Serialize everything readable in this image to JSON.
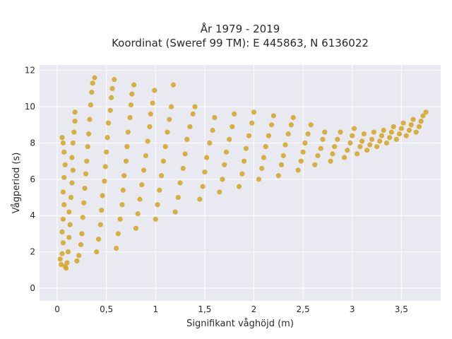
{
  "chart_data": {
    "type": "scatter",
    "title_lines": [
      "År 1979 - 2019",
      "Koordinat (Sweref 99 TM): E 445863, N 6136022"
    ],
    "xlabel": "Signifikant våghöjd (m)",
    "ylabel": "Vågperiod (s)",
    "xlim": [
      -0.18,
      3.9
    ],
    "ylim": [
      -0.7,
      12.3
    ],
    "x_ticks": [
      0,
      0.5,
      1,
      1.5,
      2,
      2.5,
      3,
      3.5
    ],
    "x_tick_labels": [
      "0",
      "0,5",
      "1",
      "1,5",
      "2",
      "2,5",
      "3",
      "3,5"
    ],
    "y_ticks": [
      0,
      2,
      4,
      6,
      8,
      10,
      12
    ],
    "y_tick_labels": [
      "0",
      "2",
      "4",
      "6",
      "8",
      "10",
      "12"
    ],
    "grid": true,
    "colors": {
      "marker": "#D4A520",
      "plot_background": "#E9E9F1",
      "grid": "#ffffff"
    },
    "series": [
      {
        "marker": "circle",
        "points": [
          [
            0.03,
            1.6
          ],
          [
            0.04,
            1.3
          ],
          [
            0.05,
            1.9
          ],
          [
            0.06,
            2.5
          ],
          [
            0.05,
            3.1
          ],
          [
            0.06,
            3.8
          ],
          [
            0.07,
            4.6
          ],
          [
            0.06,
            5.3
          ],
          [
            0.07,
            6.1
          ],
          [
            0.08,
            6.8
          ],
          [
            0.07,
            7.5
          ],
          [
            0.06,
            8.0
          ],
          [
            0.05,
            8.3
          ],
          [
            0.08,
            1.2
          ],
          [
            0.09,
            1.1
          ],
          [
            0.1,
            1.4
          ],
          [
            0.11,
            2.0
          ],
          [
            0.12,
            2.8
          ],
          [
            0.13,
            3.5
          ],
          [
            0.12,
            4.2
          ],
          [
            0.14,
            5.0
          ],
          [
            0.15,
            5.8
          ],
          [
            0.16,
            6.5
          ],
          [
            0.15,
            7.2
          ],
          [
            0.16,
            8.0
          ],
          [
            0.17,
            8.6
          ],
          [
            0.18,
            9.2
          ],
          [
            0.18,
            9.7
          ],
          [
            0.2,
            1.5
          ],
          [
            0.22,
            1.8
          ],
          [
            0.24,
            2.4
          ],
          [
            0.25,
            3.0
          ],
          [
            0.26,
            3.9
          ],
          [
            0.27,
            4.7
          ],
          [
            0.28,
            5.5
          ],
          [
            0.29,
            6.3
          ],
          [
            0.3,
            7.0
          ],
          [
            0.31,
            7.8
          ],
          [
            0.32,
            8.5
          ],
          [
            0.33,
            9.3
          ],
          [
            0.34,
            10.1
          ],
          [
            0.35,
            10.8
          ],
          [
            0.36,
            11.3
          ],
          [
            0.38,
            11.6
          ],
          [
            0.4,
            2.0
          ],
          [
            0.42,
            2.7
          ],
          [
            0.44,
            3.5
          ],
          [
            0.45,
            4.3
          ],
          [
            0.46,
            5.1
          ],
          [
            0.48,
            5.9
          ],
          [
            0.49,
            6.7
          ],
          [
            0.5,
            7.5
          ],
          [
            0.51,
            8.3
          ],
          [
            0.52,
            9.1
          ],
          [
            0.54,
            9.8
          ],
          [
            0.55,
            10.5
          ],
          [
            0.56,
            11.0
          ],
          [
            0.58,
            11.5
          ],
          [
            0.6,
            2.2
          ],
          [
            0.62,
            3.0
          ],
          [
            0.64,
            3.8
          ],
          [
            0.66,
            4.6
          ],
          [
            0.67,
            5.4
          ],
          [
            0.68,
            6.2
          ],
          [
            0.7,
            7.0
          ],
          [
            0.71,
            7.8
          ],
          [
            0.72,
            8.6
          ],
          [
            0.74,
            9.4
          ],
          [
            0.75,
            10.1
          ],
          [
            0.76,
            10.7
          ],
          [
            0.78,
            11.2
          ],
          [
            0.8,
            3.3
          ],
          [
            0.82,
            4.1
          ],
          [
            0.84,
            4.9
          ],
          [
            0.86,
            5.7
          ],
          [
            0.88,
            6.5
          ],
          [
            0.9,
            7.3
          ],
          [
            0.92,
            8.1
          ],
          [
            0.94,
            8.9
          ],
          [
            0.95,
            9.6
          ],
          [
            0.97,
            10.2
          ],
          [
            0.99,
            10.9
          ],
          [
            1.0,
            3.8
          ],
          [
            1.02,
            4.6
          ],
          [
            1.04,
            5.4
          ],
          [
            1.06,
            6.2
          ],
          [
            1.08,
            7.0
          ],
          [
            1.1,
            7.8
          ],
          [
            1.12,
            8.6
          ],
          [
            1.14,
            9.3
          ],
          [
            1.16,
            10.0
          ],
          [
            1.18,
            11.2
          ],
          [
            1.2,
            4.2
          ],
          [
            1.23,
            5.0
          ],
          [
            1.25,
            5.8
          ],
          [
            1.28,
            6.6
          ],
          [
            1.3,
            7.4
          ],
          [
            1.32,
            8.2
          ],
          [
            1.35,
            8.9
          ],
          [
            1.38,
            9.6
          ],
          [
            1.4,
            10.0
          ],
          [
            1.45,
            4.9
          ],
          [
            1.48,
            5.6
          ],
          [
            1.5,
            6.4
          ],
          [
            1.52,
            7.2
          ],
          [
            1.55,
            8.0
          ],
          [
            1.58,
            8.7
          ],
          [
            1.6,
            9.4
          ],
          [
            1.65,
            5.3
          ],
          [
            1.68,
            6.0
          ],
          [
            1.7,
            6.8
          ],
          [
            1.72,
            7.5
          ],
          [
            1.75,
            8.2
          ],
          [
            1.78,
            8.9
          ],
          [
            1.8,
            9.6
          ],
          [
            1.85,
            5.6
          ],
          [
            1.88,
            6.3
          ],
          [
            1.9,
            7.0
          ],
          [
            1.92,
            7.7
          ],
          [
            1.95,
            8.4
          ],
          [
            1.98,
            9.1
          ],
          [
            2.0,
            9.7
          ],
          [
            2.05,
            6.0
          ],
          [
            2.08,
            6.6
          ],
          [
            2.1,
            7.2
          ],
          [
            2.12,
            7.8
          ],
          [
            2.15,
            8.4
          ],
          [
            2.18,
            9.0
          ],
          [
            2.2,
            9.5
          ],
          [
            2.25,
            6.2
          ],
          [
            2.28,
            6.8
          ],
          [
            2.3,
            7.3
          ],
          [
            2.32,
            7.9
          ],
          [
            2.35,
            8.5
          ],
          [
            2.38,
            9.0
          ],
          [
            2.4,
            9.4
          ],
          [
            2.45,
            6.5
          ],
          [
            2.48,
            7.0
          ],
          [
            2.5,
            7.5
          ],
          [
            2.52,
            8.0
          ],
          [
            2.55,
            8.5
          ],
          [
            2.58,
            9.0
          ],
          [
            2.62,
            6.8
          ],
          [
            2.65,
            7.3
          ],
          [
            2.68,
            7.7
          ],
          [
            2.7,
            8.2
          ],
          [
            2.72,
            8.6
          ],
          [
            2.78,
            7.0
          ],
          [
            2.8,
            7.4
          ],
          [
            2.82,
            7.8
          ],
          [
            2.85,
            8.2
          ],
          [
            2.88,
            8.6
          ],
          [
            2.92,
            7.2
          ],
          [
            2.95,
            7.6
          ],
          [
            2.98,
            8.0
          ],
          [
            3.0,
            8.4
          ],
          [
            3.02,
            8.8
          ],
          [
            3.05,
            7.4
          ],
          [
            3.08,
            7.8
          ],
          [
            3.1,
            8.1
          ],
          [
            3.12,
            8.5
          ],
          [
            3.15,
            7.6
          ],
          [
            3.18,
            7.9
          ],
          [
            3.2,
            8.2
          ],
          [
            3.22,
            8.6
          ],
          [
            3.25,
            7.8
          ],
          [
            3.28,
            8.1
          ],
          [
            3.3,
            8.4
          ],
          [
            3.32,
            8.7
          ],
          [
            3.35,
            8.0
          ],
          [
            3.38,
            8.3
          ],
          [
            3.4,
            8.6
          ],
          [
            3.42,
            8.9
          ],
          [
            3.45,
            8.2
          ],
          [
            3.48,
            8.5
          ],
          [
            3.5,
            8.8
          ],
          [
            3.52,
            9.1
          ],
          [
            3.55,
            8.4
          ],
          [
            3.58,
            8.7
          ],
          [
            3.6,
            9.0
          ],
          [
            3.62,
            9.3
          ],
          [
            3.65,
            8.6
          ],
          [
            3.68,
            8.9
          ],
          [
            3.7,
            9.2
          ],
          [
            3.72,
            9.5
          ],
          [
            3.75,
            9.7
          ]
        ]
      }
    ]
  }
}
